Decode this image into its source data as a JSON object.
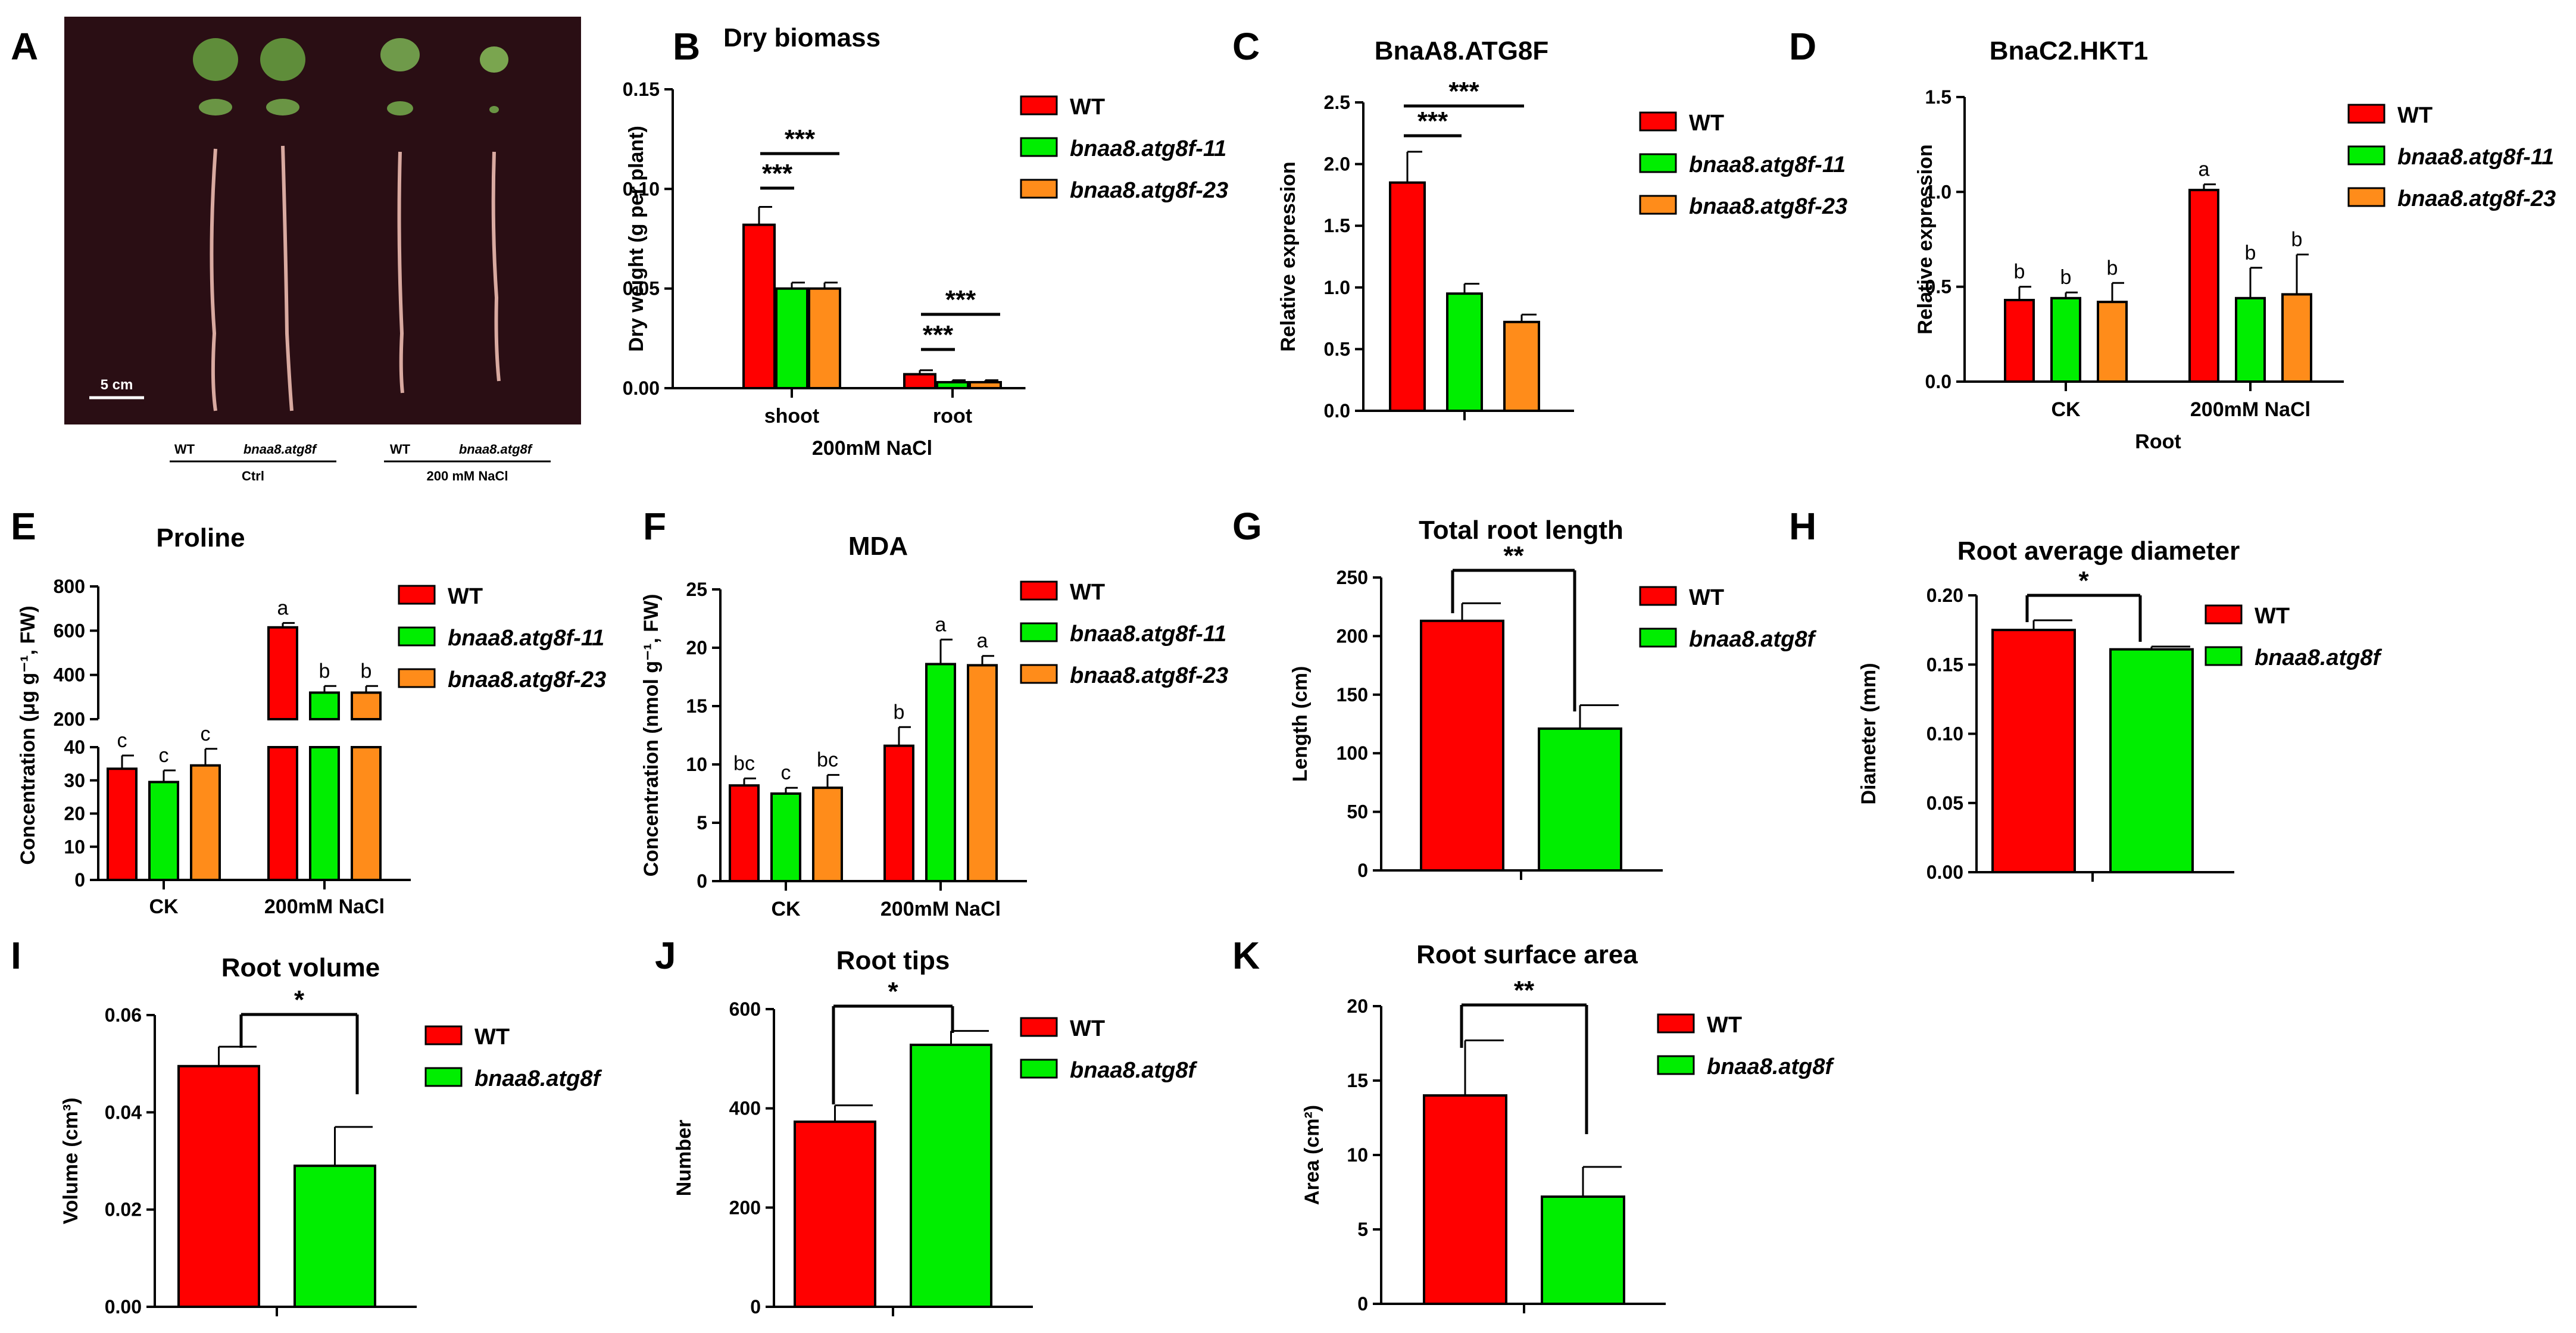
{
  "colors": {
    "WT": "#ff0000",
    "L11": "#00ee00",
    "L23": "#ff8c1a",
    "photo_bg": "#2a0e14"
  },
  "photo": {
    "label": "A",
    "scale_bar": "5 cm",
    "caption_wt": "WT",
    "caption_mut": "bnaa8.atg8f",
    "caption_ctrl": "Ctrl",
    "caption_nacl": "200 mM NaCl"
  },
  "chart_data": [
    {
      "id": "B",
      "type": "bar",
      "title": "Dry biomass",
      "ylabel": "Dry weight (g per plant)",
      "xlabel": "200mM NaCl",
      "categories": [
        "shoot",
        "root"
      ],
      "ylim": [
        0,
        0.15
      ],
      "yticks": [
        "0.00",
        "0.05",
        "0.10",
        "0.15"
      ],
      "series": [
        {
          "name": "WT",
          "values": [
            0.082,
            0.007
          ],
          "errors": [
            0.009,
            0.002
          ]
        },
        {
          "name": "bnaa8.atg8f-11",
          "values": [
            0.05,
            0.003
          ],
          "errors": [
            0.003,
            0.001
          ]
        },
        {
          "name": "bnaa8.atg8f-23",
          "values": [
            0.05,
            0.003
          ],
          "errors": [
            0.003,
            0.001
          ]
        }
      ],
      "significance": [
        "***",
        "***",
        "***",
        "***"
      ]
    },
    {
      "id": "C",
      "type": "bar",
      "title": "BnaA8.ATG8F",
      "ylabel": "Relative expression",
      "xlabel": "",
      "categories": [
        ""
      ],
      "ylim": [
        0,
        2.5
      ],
      "yticks": [
        "0.0",
        "0.5",
        "1.0",
        "1.5",
        "2.0",
        "2.5"
      ],
      "series": [
        {
          "name": "WT",
          "values": [
            1.85
          ],
          "errors": [
            0.25
          ]
        },
        {
          "name": "bnaa8.atg8f-11",
          "values": [
            0.95
          ],
          "errors": [
            0.08
          ]
        },
        {
          "name": "bnaa8.atg8f-23",
          "values": [
            0.72
          ],
          "errors": [
            0.06
          ]
        }
      ],
      "significance": [
        "***",
        "***"
      ]
    },
    {
      "id": "D",
      "type": "bar",
      "title": "BnaC2.HKT1",
      "ylabel": "Relative expression",
      "xlabel": "Root",
      "categories": [
        "CK",
        "200mM NaCl"
      ],
      "ylim": [
        0,
        1.5
      ],
      "yticks": [
        "0.0",
        "0.5",
        "1.0",
        "1.5"
      ],
      "series": [
        {
          "name": "WT",
          "values": [
            0.43,
            1.01
          ],
          "errors": [
            0.07,
            0.03
          ],
          "letters": [
            "b",
            "a"
          ]
        },
        {
          "name": "bnaa8.atg8f-11",
          "values": [
            0.44,
            0.44
          ],
          "errors": [
            0.03,
            0.16
          ],
          "letters": [
            "b",
            "b"
          ]
        },
        {
          "name": "bnaa8.atg8f-23",
          "values": [
            0.42,
            0.46
          ],
          "errors": [
            0.1,
            0.21
          ],
          "letters": [
            "b",
            "b"
          ]
        }
      ]
    },
    {
      "id": "E",
      "type": "bar",
      "title": "Proline",
      "ylabel": "Concentration (μg g⁻¹, FW)",
      "xlabel": "",
      "categories": [
        "CK",
        "200mM NaCl"
      ],
      "broken_axis": {
        "low": [
          0,
          40
        ],
        "high": [
          200,
          800
        ]
      },
      "yticks": [
        "0",
        "10",
        "20",
        "30",
        "40",
        "200",
        "400",
        "600",
        "800"
      ],
      "series": [
        {
          "name": "WT",
          "values": [
            33.5,
            615
          ],
          "errors": [
            4,
            20
          ],
          "letters": [
            "c",
            "a"
          ]
        },
        {
          "name": "bnaa8.atg8f-11",
          "values": [
            29.5,
            320
          ],
          "errors": [
            3.5,
            30
          ],
          "letters": [
            "c",
            "b"
          ]
        },
        {
          "name": "bnaa8.atg8f-23",
          "values": [
            34.5,
            320
          ],
          "errors": [
            5,
            30
          ],
          "letters": [
            "c",
            "b"
          ]
        }
      ]
    },
    {
      "id": "F",
      "type": "bar",
      "title": "MDA",
      "ylabel": "Concentration (nmol g⁻¹, FW)",
      "xlabel": "",
      "categories": [
        "CK",
        "200mM NaCl"
      ],
      "ylim": [
        0,
        25
      ],
      "yticks": [
        "0",
        "5",
        "10",
        "15",
        "20",
        "25"
      ],
      "series": [
        {
          "name": "WT",
          "values": [
            8.2,
            11.6
          ],
          "errors": [
            0.6,
            1.6
          ],
          "letters": [
            "bc",
            "b"
          ]
        },
        {
          "name": "bnaa8.atg8f-11",
          "values": [
            7.5,
            18.6
          ],
          "errors": [
            0.5,
            2.1
          ],
          "letters": [
            "c",
            "a"
          ]
        },
        {
          "name": "bnaa8.atg8f-23",
          "values": [
            8.0,
            18.5
          ],
          "errors": [
            1.1,
            0.8
          ],
          "letters": [
            "bc",
            "a"
          ]
        }
      ]
    },
    {
      "id": "G",
      "type": "bar",
      "title": "Total root length",
      "ylabel": "Length (cm)",
      "categories": [
        ""
      ],
      "ylim": [
        0,
        250
      ],
      "yticks": [
        "0",
        "50",
        "100",
        "150",
        "200",
        "250"
      ],
      "series": [
        {
          "name": "WT",
          "values": [
            213
          ],
          "errors": [
            15
          ]
        },
        {
          "name": "bnaa8.atg8f",
          "values": [
            121
          ],
          "errors": [
            20
          ]
        }
      ],
      "significance": [
        "**"
      ]
    },
    {
      "id": "H",
      "type": "bar",
      "title": "Root average diameter",
      "ylabel": "Diameter (mm)",
      "categories": [
        ""
      ],
      "ylim": [
        0,
        0.2
      ],
      "yticks": [
        "0.00",
        "0.05",
        "0.10",
        "0.15",
        "0.20"
      ],
      "series": [
        {
          "name": "WT",
          "values": [
            0.175
          ],
          "errors": [
            0.007
          ]
        },
        {
          "name": "bnaa8.atg8f",
          "values": [
            0.161
          ],
          "errors": [
            0.002
          ]
        }
      ],
      "significance": [
        "*"
      ]
    },
    {
      "id": "I",
      "type": "bar",
      "title": "Root volume",
      "ylabel": "Volume (cm³)",
      "categories": [
        ""
      ],
      "ylim": [
        0,
        0.06
      ],
      "yticks": [
        "0.00",
        "0.02",
        "0.04",
        "0.06"
      ],
      "series": [
        {
          "name": "WT",
          "values": [
            0.0495
          ],
          "errors": [
            0.004
          ]
        },
        {
          "name": "bnaa8.atg8f",
          "values": [
            0.029
          ],
          "errors": [
            0.008
          ]
        }
      ],
      "significance": [
        "*"
      ]
    },
    {
      "id": "J",
      "type": "bar",
      "title": "Root tips",
      "ylabel": "Number",
      "categories": [
        ""
      ],
      "ylim": [
        0,
        600
      ],
      "yticks": [
        "0",
        "200",
        "400",
        "600"
      ],
      "series": [
        {
          "name": "WT",
          "values": [
            373
          ],
          "errors": [
            33
          ]
        },
        {
          "name": "bnaa8.atg8f",
          "values": [
            528
          ],
          "errors": [
            28
          ]
        }
      ],
      "significance": [
        "*"
      ]
    },
    {
      "id": "K",
      "type": "bar",
      "title": "Root surface area",
      "ylabel": "Area (cm²)",
      "categories": [
        ""
      ],
      "ylim": [
        0,
        20
      ],
      "yticks": [
        "0",
        "5",
        "10",
        "15",
        "20"
      ],
      "series": [
        {
          "name": "WT",
          "values": [
            14.0
          ],
          "errors": [
            3.7
          ]
        },
        {
          "name": "bnaa8.atg8f",
          "values": [
            7.2
          ],
          "errors": [
            2.0
          ]
        }
      ],
      "significance": [
        "**"
      ]
    }
  ]
}
